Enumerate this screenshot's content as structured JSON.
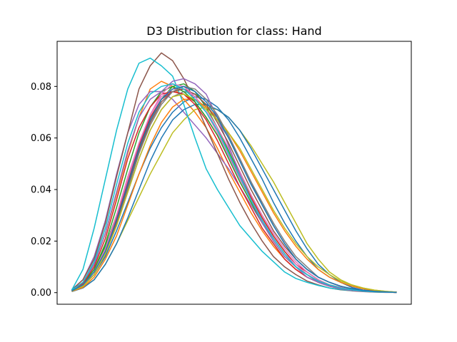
{
  "chart_data": {
    "type": "line",
    "title": "D3 Distribution for class: Hand",
    "xlabel": "",
    "ylabel": "",
    "x_tick_labels": [],
    "ylim": [
      -0.0045,
      0.0975
    ],
    "yticks": [
      0.0,
      0.02,
      0.04,
      0.06,
      0.08
    ],
    "y_tick_labels": [
      "0.00",
      "0.02",
      "0.04",
      "0.06",
      "0.08"
    ],
    "grid": false,
    "legend": "none",
    "x": [
      0,
      1,
      2,
      3,
      4,
      5,
      6,
      7,
      8,
      9,
      10,
      11,
      12,
      13,
      14,
      15,
      16,
      17,
      18,
      19,
      20,
      21,
      22,
      23,
      24,
      25,
      26,
      27,
      28,
      29
    ],
    "series": [
      {
        "color": "#1f77b4",
        "values": [
          0.001,
          0.003,
          0.007,
          0.014,
          0.024,
          0.035,
          0.046,
          0.056,
          0.064,
          0.07,
          0.074,
          0.076,
          0.075,
          0.072,
          0.067,
          0.06,
          0.052,
          0.044,
          0.035,
          0.027,
          0.02,
          0.014,
          0.009,
          0.006,
          0.004,
          0.002,
          0.001,
          0.0007,
          0.0004,
          0.0002
        ]
      },
      {
        "color": "#ff7f0e",
        "values": [
          0.0008,
          0.004,
          0.011,
          0.023,
          0.038,
          0.054,
          0.068,
          0.079,
          0.082,
          0.08,
          0.075,
          0.07,
          0.064,
          0.056,
          0.047,
          0.039,
          0.031,
          0.024,
          0.018,
          0.013,
          0.009,
          0.006,
          0.004,
          0.0025,
          0.0015,
          0.0009,
          0.0005,
          0.0003,
          0.0002,
          0.0001
        ]
      },
      {
        "color": "#2ca02c",
        "values": [
          0.0009,
          0.0035,
          0.009,
          0.018,
          0.03,
          0.043,
          0.056,
          0.067,
          0.075,
          0.08,
          0.081,
          0.078,
          0.072,
          0.064,
          0.055,
          0.046,
          0.037,
          0.029,
          0.022,
          0.016,
          0.011,
          0.008,
          0.005,
          0.003,
          0.002,
          0.0012,
          0.0007,
          0.0004,
          0.0002,
          0.0001
        ]
      },
      {
        "color": "#d62728",
        "values": [
          0.0008,
          0.003,
          0.008,
          0.017,
          0.029,
          0.043,
          0.057,
          0.068,
          0.075,
          0.078,
          0.077,
          0.074,
          0.068,
          0.061,
          0.053,
          0.045,
          0.037,
          0.029,
          0.022,
          0.016,
          0.011,
          0.008,
          0.005,
          0.003,
          0.002,
          0.0012,
          0.0007,
          0.0004,
          0.0002,
          0.0001
        ]
      },
      {
        "color": "#9467bd",
        "values": [
          0.0012,
          0.005,
          0.014,
          0.028,
          0.046,
          0.062,
          0.073,
          0.078,
          0.078,
          0.075,
          0.07,
          0.065,
          0.06,
          0.054,
          0.048,
          0.041,
          0.034,
          0.027,
          0.021,
          0.015,
          0.01,
          0.007,
          0.004,
          0.0025,
          0.0015,
          0.0009,
          0.0005,
          0.0003,
          0.0002,
          0.0001
        ]
      },
      {
        "color": "#8c564b",
        "values": [
          0.001,
          0.005,
          0.013,
          0.027,
          0.045,
          0.062,
          0.079,
          0.088,
          0.093,
          0.09,
          0.083,
          0.074,
          0.064,
          0.054,
          0.044,
          0.035,
          0.027,
          0.02,
          0.014,
          0.01,
          0.007,
          0.0045,
          0.003,
          0.0018,
          0.0011,
          0.0007,
          0.0004,
          0.0002,
          0.0001,
          0.0001
        ]
      },
      {
        "color": "#e377c2",
        "values": [
          0.0008,
          0.003,
          0.008,
          0.017,
          0.03,
          0.045,
          0.058,
          0.069,
          0.076,
          0.079,
          0.079,
          0.076,
          0.071,
          0.064,
          0.056,
          0.047,
          0.038,
          0.03,
          0.023,
          0.017,
          0.012,
          0.008,
          0.005,
          0.003,
          0.002,
          0.0012,
          0.0007,
          0.0004,
          0.0002,
          0.0001
        ]
      },
      {
        "color": "#7f7f7f",
        "values": [
          0.0007,
          0.0025,
          0.007,
          0.015,
          0.026,
          0.039,
          0.052,
          0.063,
          0.071,
          0.076,
          0.078,
          0.077,
          0.073,
          0.067,
          0.06,
          0.052,
          0.043,
          0.035,
          0.027,
          0.02,
          0.014,
          0.01,
          0.006,
          0.004,
          0.0025,
          0.0015,
          0.0009,
          0.0005,
          0.0003,
          0.0001
        ]
      },
      {
        "color": "#bcbd22",
        "values": [
          0.0005,
          0.002,
          0.005,
          0.011,
          0.019,
          0.028,
          0.037,
          0.046,
          0.054,
          0.062,
          0.067,
          0.071,
          0.072,
          0.071,
          0.068,
          0.063,
          0.057,
          0.05,
          0.043,
          0.035,
          0.027,
          0.019,
          0.013,
          0.008,
          0.005,
          0.003,
          0.0018,
          0.001,
          0.0005,
          0.0002
        ]
      },
      {
        "color": "#17becf",
        "values": [
          0.001,
          0.009,
          0.025,
          0.044,
          0.063,
          0.079,
          0.089,
          0.091,
          0.088,
          0.084,
          0.073,
          0.06,
          0.048,
          0.04,
          0.033,
          0.026,
          0.021,
          0.016,
          0.012,
          0.008,
          0.0055,
          0.004,
          0.0028,
          0.0018,
          0.0012,
          0.0008,
          0.0005,
          0.0003,
          0.0002,
          0.0001
        ]
      },
      {
        "color": "#1f77b4",
        "values": [
          0.0004,
          0.0018,
          0.005,
          0.011,
          0.019,
          0.029,
          0.04,
          0.051,
          0.06,
          0.067,
          0.071,
          0.073,
          0.073,
          0.071,
          0.068,
          0.063,
          0.056,
          0.048,
          0.04,
          0.032,
          0.024,
          0.017,
          0.011,
          0.007,
          0.004,
          0.0025,
          0.0015,
          0.0008,
          0.0004,
          0.0002
        ]
      },
      {
        "color": "#ff7f0e",
        "values": [
          0.0005,
          0.002,
          0.006,
          0.013,
          0.022,
          0.034,
          0.046,
          0.057,
          0.066,
          0.072,
          0.075,
          0.075,
          0.072,
          0.068,
          0.062,
          0.055,
          0.047,
          0.039,
          0.031,
          0.024,
          0.018,
          0.013,
          0.009,
          0.006,
          0.004,
          0.0025,
          0.0015,
          0.0009,
          0.0004,
          0.0002
        ]
      },
      {
        "color": "#2ca02c",
        "values": [
          0.0008,
          0.003,
          0.009,
          0.019,
          0.033,
          0.048,
          0.062,
          0.072,
          0.078,
          0.08,
          0.078,
          0.074,
          0.068,
          0.061,
          0.052,
          0.043,
          0.035,
          0.027,
          0.02,
          0.014,
          0.01,
          0.007,
          0.0045,
          0.003,
          0.0018,
          0.0011,
          0.0006,
          0.0003,
          0.0002,
          0.0001
        ]
      },
      {
        "color": "#d62728",
        "values": [
          0.0008,
          0.0035,
          0.01,
          0.021,
          0.036,
          0.052,
          0.064,
          0.072,
          0.077,
          0.078,
          0.077,
          0.073,
          0.067,
          0.059,
          0.05,
          0.041,
          0.033,
          0.025,
          0.019,
          0.013,
          0.009,
          0.006,
          0.004,
          0.0025,
          0.0015,
          0.0009,
          0.0005,
          0.0003,
          0.0002,
          0.0001
        ]
      },
      {
        "color": "#9467bd",
        "values": [
          0.0009,
          0.004,
          0.011,
          0.023,
          0.039,
          0.055,
          0.068,
          0.075,
          0.078,
          0.082,
          0.083,
          0.081,
          0.077,
          0.068,
          0.057,
          0.046,
          0.036,
          0.027,
          0.02,
          0.014,
          0.01,
          0.006,
          0.004,
          0.0025,
          0.0015,
          0.0009,
          0.0005,
          0.0003,
          0.0002,
          0.0001
        ]
      },
      {
        "color": "#8c564b",
        "values": [
          0.0006,
          0.0025,
          0.007,
          0.015,
          0.027,
          0.041,
          0.055,
          0.066,
          0.074,
          0.078,
          0.079,
          0.077,
          0.073,
          0.066,
          0.058,
          0.049,
          0.04,
          0.032,
          0.024,
          0.018,
          0.013,
          0.009,
          0.006,
          0.004,
          0.0025,
          0.0015,
          0.0009,
          0.0005,
          0.0003,
          0.0001
        ]
      },
      {
        "color": "#e377c2",
        "values": [
          0.0007,
          0.003,
          0.008,
          0.017,
          0.03,
          0.044,
          0.058,
          0.069,
          0.077,
          0.081,
          0.08,
          0.076,
          0.07,
          0.062,
          0.053,
          0.044,
          0.036,
          0.028,
          0.021,
          0.015,
          0.011,
          0.007,
          0.0045,
          0.003,
          0.0018,
          0.0011,
          0.0006,
          0.0003,
          0.0002,
          0.0001
        ]
      },
      {
        "color": "#7f7f7f",
        "values": [
          0.0006,
          0.0025,
          0.007,
          0.015,
          0.026,
          0.04,
          0.054,
          0.065,
          0.073,
          0.078,
          0.08,
          0.079,
          0.075,
          0.069,
          0.061,
          0.052,
          0.043,
          0.034,
          0.026,
          0.019,
          0.013,
          0.009,
          0.006,
          0.004,
          0.0025,
          0.0015,
          0.0009,
          0.0005,
          0.0003,
          0.0001
        ]
      },
      {
        "color": "#bcbd22",
        "values": [
          0.0006,
          0.0025,
          0.007,
          0.015,
          0.026,
          0.039,
          0.052,
          0.063,
          0.071,
          0.076,
          0.077,
          0.075,
          0.071,
          0.067,
          0.062,
          0.056,
          0.048,
          0.04,
          0.032,
          0.025,
          0.019,
          0.014,
          0.01,
          0.007,
          0.0045,
          0.003,
          0.0018,
          0.001,
          0.0005,
          0.0002
        ]
      },
      {
        "color": "#17becf",
        "values": [
          0.001,
          0.004,
          0.012,
          0.025,
          0.042,
          0.058,
          0.07,
          0.077,
          0.08,
          0.081,
          0.079,
          0.075,
          0.07,
          0.063,
          0.054,
          0.045,
          0.036,
          0.028,
          0.021,
          0.015,
          0.01,
          0.007,
          0.0045,
          0.003,
          0.0018,
          0.0011,
          0.0006,
          0.0003,
          0.0002,
          0.0001
        ]
      },
      {
        "color": "#1f77b4",
        "values": [
          0.0007,
          0.003,
          0.008,
          0.016,
          0.028,
          0.042,
          0.056,
          0.067,
          0.075,
          0.079,
          0.08,
          0.078,
          0.074,
          0.068,
          0.06,
          0.051,
          0.042,
          0.034,
          0.026,
          0.019,
          0.013,
          0.009,
          0.006,
          0.004,
          0.0025,
          0.0015,
          0.0009,
          0.0005,
          0.0003,
          0.0001
        ]
      }
    ]
  }
}
